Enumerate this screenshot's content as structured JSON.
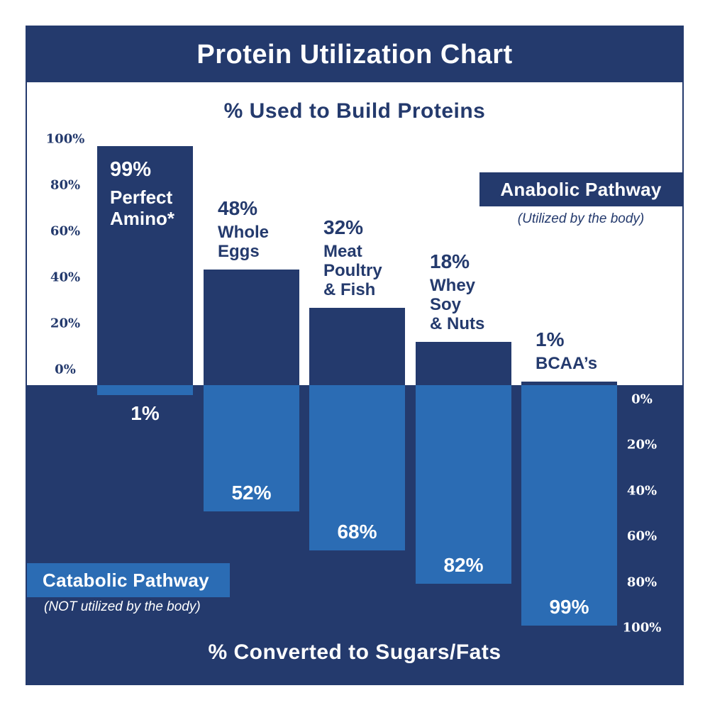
{
  "title": "Protein Utilization Chart",
  "colors": {
    "navy": "#243a6d",
    "light_blue": "#2b6cb4",
    "background": "#ffffff"
  },
  "anabolic_section": {
    "heading": "% Used to Build Proteins",
    "pathway_label": "Anabolic Pathway",
    "pathway_subtitle": "(Utilized by the body)",
    "axis_ticks": [
      "100%",
      "80%",
      "60%",
      "40%",
      "20%",
      "0%"
    ]
  },
  "catabolic_section": {
    "heading": "% Converted to Sugars/Fats",
    "pathway_label": "Catabolic Pathway",
    "pathway_subtitle": "(NOT utilized by the body)",
    "axis_ticks": [
      "0%",
      "20%",
      "40%",
      "60%",
      "80%",
      "100%"
    ]
  },
  "chart_data": {
    "type": "bar",
    "title": "Protein Utilization Chart",
    "orientation": "diverging-vertical",
    "categories": [
      "Perfect Amino*",
      "Whole Eggs",
      "Meat Poultry & Fish",
      "Whey Soy & Nuts",
      "BCAA’s"
    ],
    "series": [
      {
        "name": "% Used to Build Proteins (Anabolic Pathway)",
        "values": [
          99,
          48,
          32,
          18,
          1
        ]
      },
      {
        "name": "% Converted to Sugars/Fats (Catabolic Pathway)",
        "values": [
          1,
          52,
          68,
          82,
          99
        ]
      }
    ],
    "axis_up_range": [
      0,
      100
    ],
    "axis_down_range": [
      0,
      100
    ],
    "grid": false,
    "bars": [
      {
        "category_lines": [
          "Perfect",
          "Amino*"
        ],
        "anabolic_label": "99%",
        "catabolic_label": "1%",
        "anabolic_value": 99,
        "catabolic_value": 1,
        "category_label_placement": "inside-bar"
      },
      {
        "category_lines": [
          "Whole",
          "Eggs"
        ],
        "anabolic_label": "48%",
        "catabolic_label": "52%",
        "anabolic_value": 48,
        "catabolic_value": 52,
        "category_label_placement": "above-bar"
      },
      {
        "category_lines": [
          "Meat",
          "Poultry",
          "& Fish"
        ],
        "anabolic_label": "32%",
        "catabolic_label": "68%",
        "anabolic_value": 32,
        "catabolic_value": 68,
        "category_label_placement": "above-bar"
      },
      {
        "category_lines": [
          "Whey",
          "Soy",
          "& Nuts"
        ],
        "anabolic_label": "18%",
        "catabolic_label": "82%",
        "anabolic_value": 18,
        "catabolic_value": 82,
        "category_label_placement": "above-bar"
      },
      {
        "category_lines": [
          "BCAA’s"
        ],
        "anabolic_label": "1%",
        "catabolic_label": "99%",
        "anabolic_value": 1,
        "catabolic_value": 99,
        "category_label_placement": "above-bar"
      }
    ]
  }
}
